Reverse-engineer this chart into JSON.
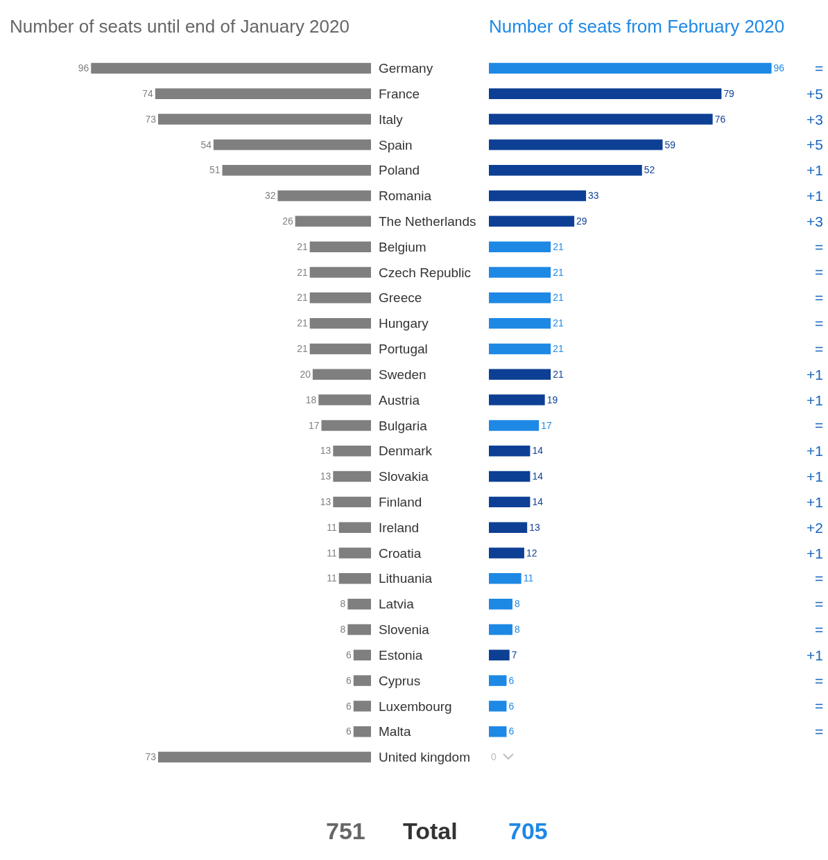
{
  "chart_data": [
    {
      "type": "bar",
      "orientation": "horizontal",
      "title": "Number of seats until end of January 2020",
      "categories": [
        "Germany",
        "France",
        "Italy",
        "Spain",
        "Poland",
        "Romania",
        "The Netherlands",
        "Belgium",
        "Czech Republic",
        "Greece",
        "Hungary",
        "Portugal",
        "Sweden",
        "Austria",
        "Bulgaria",
        "Denmark",
        "Slovakia",
        "Finland",
        "Ireland",
        "Croatia",
        "Lithuania",
        "Latvia",
        "Slovenia",
        "Estonia",
        "Cyprus",
        "Luxembourg",
        "Malta",
        "United kingdom"
      ],
      "values": [
        96,
        74,
        73,
        54,
        51,
        32,
        26,
        21,
        21,
        21,
        21,
        21,
        20,
        18,
        17,
        13,
        13,
        13,
        11,
        11,
        11,
        8,
        8,
        6,
        6,
        6,
        6,
        73
      ],
      "color": "#7f7f7f",
      "data_labels": true,
      "tick_labels": "y",
      "grid": false,
      "annotations": [
        "751",
        "Total"
      ]
    },
    {
      "type": "bar",
      "orientation": "horizontal",
      "title": "Number of seats from February 2020",
      "categories": [
        null,
        null,
        null,
        null,
        null,
        null,
        null,
        null,
        null,
        null,
        null,
        null,
        null,
        null,
        null,
        null,
        null,
        null,
        null,
        null,
        null,
        null,
        null,
        null,
        null,
        null,
        null,
        null
      ],
      "values": [
        96,
        79,
        76,
        59,
        52,
        33,
        29,
        21,
        21,
        21,
        21,
        21,
        21,
        19,
        17,
        14,
        14,
        14,
        13,
        12,
        11,
        8,
        8,
        7,
        6,
        6,
        6,
        0
      ],
      "colors": [
        "#1e88e5",
        "#0d3f94",
        "#0d3f94",
        "#0d3f94",
        "#0d3f94",
        "#0d3f94",
        "#0d3f94",
        "#1e88e5",
        "#1e88e5",
        "#1e88e5",
        "#1e88e5",
        "#1e88e5",
        "#0d3f94",
        "#0d3f94",
        "#1e88e5",
        "#0d3f94",
        "#0d3f94",
        "#0d3f94",
        "#0d3f94",
        "#0d3f94",
        "#1e88e5",
        "#1e88e5",
        "#1e88e5",
        "#0d3f94",
        "#1e88e5",
        "#1e88e5",
        "#1e88e5",
        "#bdbdbd"
      ],
      "data_labels": true,
      "tick_labels": false,
      "grid": false,
      "annotations": [
        "705",
        "=",
        "+5",
        "+3",
        "+5",
        "+1",
        "+1",
        "+3",
        "=",
        "=",
        "=",
        "=",
        "=",
        "+1",
        "+1",
        "=",
        "+1",
        "+1",
        "+1",
        "+2",
        "+1",
        "=",
        "=",
        "=",
        "+1",
        "=",
        "=",
        "="
      ]
    }
  ]
}
